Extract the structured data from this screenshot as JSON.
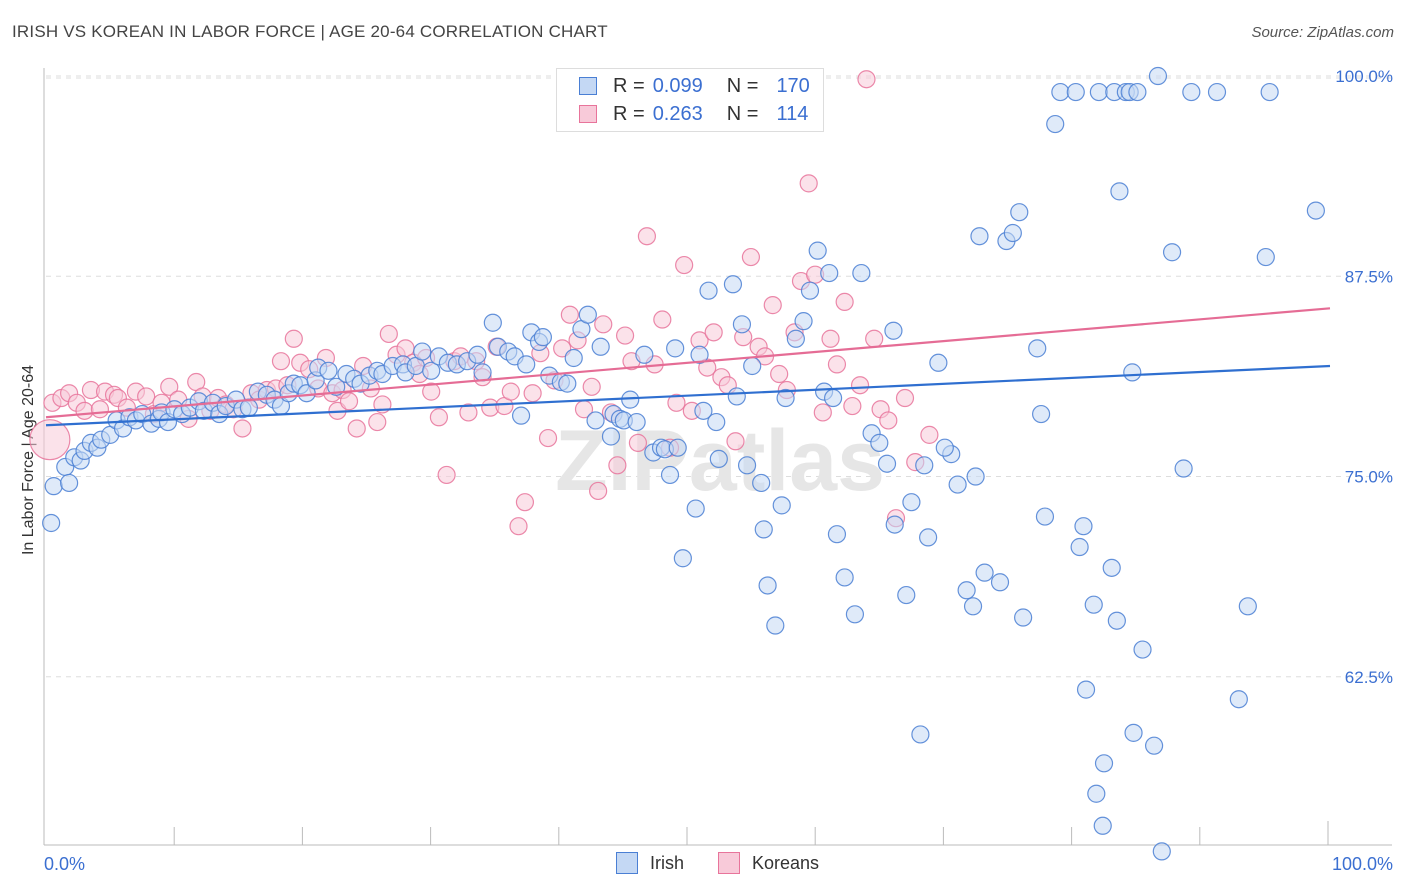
{
  "title": "IRISH VS KOREAN IN LABOR FORCE | AGE 20-64 CORRELATION CHART",
  "source": "Source: ZipAtlas.com",
  "legend": {
    "irish": {
      "r_label": "R =",
      "r_value": "0.099",
      "n_label": "N =",
      "n_value": "170"
    },
    "koreans": {
      "r_label": "R =",
      "r_value": "0.263",
      "n_label": "N =",
      "n_value": "114"
    }
  },
  "bottom_legend": {
    "irish": "Irish",
    "koreans": "Koreans"
  },
  "colors": {
    "irish": "#4a7fd4",
    "irish_fill": "#c4d8f4",
    "koreans": "#e8749b",
    "koreans_fill": "#f8cad9",
    "axis_text": "#3b6fd1"
  },
  "chart_data": {
    "type": "scatter",
    "ylabel": "In Labor Force | Age 20-64",
    "xlabel": "",
    "x_tick_labels": [
      "0.0%",
      "100.0%"
    ],
    "y_tick_labels": [
      "100.0%",
      "87.5%",
      "75.0%",
      "62.5%"
    ],
    "y_ticks": [
      100,
      87.5,
      75,
      62.5
    ],
    "xlim": [
      0,
      100
    ],
    "ylim": [
      52,
      101
    ],
    "watermark": "ZIPatlas",
    "series": [
      {
        "name": "Irish",
        "trend": {
          "x": [
            0,
            100
          ],
          "y": [
            78.2,
            81.9
          ]
        },
        "points": [
          [
            0.4,
            72.1
          ],
          [
            0.6,
            74.4
          ],
          [
            1.5,
            75.6
          ],
          [
            1.8,
            74.6
          ],
          [
            2.2,
            76.2
          ],
          [
            2.7,
            76.0
          ],
          [
            3.0,
            76.6
          ],
          [
            3.5,
            77.1
          ],
          [
            4.0,
            76.8
          ],
          [
            4.3,
            77.3
          ],
          [
            5.0,
            77.6
          ],
          [
            5.5,
            78.5
          ],
          [
            6.0,
            78.0
          ],
          [
            6.5,
            78.7
          ],
          [
            7.0,
            78.5
          ],
          [
            7.5,
            78.9
          ],
          [
            8.2,
            78.3
          ],
          [
            8.8,
            78.6
          ],
          [
            9.0,
            79.0
          ],
          [
            9.5,
            78.4
          ],
          [
            10.0,
            79.2
          ],
          [
            10.6,
            78.9
          ],
          [
            11.2,
            79.3
          ],
          [
            11.9,
            79.7
          ],
          [
            12.3,
            79.1
          ],
          [
            13.0,
            79.6
          ],
          [
            13.5,
            78.9
          ],
          [
            14.0,
            79.4
          ],
          [
            14.8,
            79.8
          ],
          [
            15.3,
            79.2
          ],
          [
            15.8,
            79.3
          ],
          [
            16.5,
            80.3
          ],
          [
            17.2,
            80.1
          ],
          [
            17.8,
            79.8
          ],
          [
            18.3,
            79.4
          ],
          [
            18.9,
            80.2
          ],
          [
            19.3,
            80.8
          ],
          [
            19.8,
            80.7
          ],
          [
            20.3,
            80.2
          ],
          [
            21.0,
            81.0
          ],
          [
            21.2,
            81.8
          ],
          [
            22.0,
            81.6
          ],
          [
            22.6,
            80.6
          ],
          [
            23.4,
            81.4
          ],
          [
            24.0,
            81.1
          ],
          [
            24.5,
            80.8
          ],
          [
            25.2,
            81.3
          ],
          [
            25.8,
            81.6
          ],
          [
            26.2,
            81.4
          ],
          [
            27.0,
            81.9
          ],
          [
            27.8,
            82.0
          ],
          [
            28.0,
            81.5
          ],
          [
            28.8,
            81.9
          ],
          [
            29.3,
            82.8
          ],
          [
            30.0,
            81.6
          ],
          [
            30.6,
            82.5
          ],
          [
            31.3,
            82.1
          ],
          [
            32.0,
            82.0
          ],
          [
            32.8,
            82.2
          ],
          [
            33.6,
            82.6
          ],
          [
            34.0,
            81.5
          ],
          [
            34.8,
            84.6
          ],
          [
            35.2,
            83.1
          ],
          [
            36.0,
            82.8
          ],
          [
            36.5,
            82.5
          ],
          [
            37.0,
            78.8
          ],
          [
            37.4,
            82.0
          ],
          [
            37.8,
            84.0
          ],
          [
            38.4,
            83.4
          ],
          [
            38.7,
            83.7
          ],
          [
            39.2,
            81.3
          ],
          [
            40.1,
            80.9
          ],
          [
            40.6,
            80.8
          ],
          [
            41.1,
            82.4
          ],
          [
            41.7,
            84.2
          ],
          [
            42.2,
            85.1
          ],
          [
            42.8,
            78.5
          ],
          [
            43.2,
            83.1
          ],
          [
            44.0,
            77.5
          ],
          [
            44.2,
            78.9
          ],
          [
            44.7,
            78.6
          ],
          [
            45.0,
            78.5
          ],
          [
            45.5,
            79.8
          ],
          [
            46.0,
            78.4
          ],
          [
            46.6,
            82.6
          ],
          [
            47.3,
            76.5
          ],
          [
            47.9,
            76.8
          ],
          [
            48.2,
            76.7
          ],
          [
            48.6,
            75.1
          ],
          [
            49.0,
            83.0
          ],
          [
            49.2,
            76.8
          ],
          [
            49.6,
            69.9
          ],
          [
            50.6,
            73.0
          ],
          [
            50.9,
            82.6
          ],
          [
            51.2,
            79.1
          ],
          [
            51.6,
            86.6
          ],
          [
            52.2,
            78.4
          ],
          [
            52.4,
            76.1
          ],
          [
            53.5,
            87.0
          ],
          [
            53.8,
            80.0
          ],
          [
            54.2,
            84.5
          ],
          [
            54.6,
            75.7
          ],
          [
            55.0,
            81.9
          ],
          [
            55.7,
            74.6
          ],
          [
            55.9,
            71.7
          ],
          [
            56.2,
            68.2
          ],
          [
            56.8,
            65.7
          ],
          [
            57.3,
            73.2
          ],
          [
            57.6,
            79.9
          ],
          [
            58.4,
            83.6
          ],
          [
            59.0,
            84.7
          ],
          [
            59.5,
            86.6
          ],
          [
            60.1,
            89.1
          ],
          [
            60.6,
            80.3
          ],
          [
            61.0,
            87.7
          ],
          [
            61.3,
            79.9
          ],
          [
            61.6,
            71.4
          ],
          [
            62.2,
            68.7
          ],
          [
            63.0,
            66.4
          ],
          [
            63.5,
            87.7
          ],
          [
            64.3,
            77.7
          ],
          [
            64.9,
            77.1
          ],
          [
            65.5,
            75.8
          ],
          [
            66.0,
            84.1
          ],
          [
            66.1,
            72.0
          ],
          [
            67.0,
            67.6
          ],
          [
            67.4,
            73.4
          ],
          [
            68.1,
            58.9
          ],
          [
            68.4,
            75.7
          ],
          [
            68.7,
            71.2
          ],
          [
            69.5,
            82.1
          ],
          [
            70.5,
            76.4
          ],
          [
            71.0,
            74.5
          ],
          [
            72.4,
            75.0
          ],
          [
            72.7,
            90.0
          ],
          [
            73.1,
            69.0
          ],
          [
            74.3,
            68.4
          ],
          [
            74.8,
            89.7
          ],
          [
            75.3,
            90.2
          ],
          [
            75.8,
            91.5
          ],
          [
            77.2,
            83.0
          ],
          [
            77.5,
            78.9
          ],
          [
            78.6,
            97.0
          ],
          [
            79.0,
            99.0
          ],
          [
            80.2,
            99.0
          ],
          [
            80.5,
            70.6
          ],
          [
            81.6,
            67.0
          ],
          [
            81.8,
            55.2
          ],
          [
            82.0,
            99.0
          ],
          [
            82.4,
            57.1
          ],
          [
            83.2,
            99.0
          ],
          [
            83.6,
            92.8
          ],
          [
            83.4,
            66.0
          ],
          [
            84.1,
            99.0
          ],
          [
            84.4,
            99.0
          ],
          [
            84.6,
            81.5
          ],
          [
            85.0,
            99.0
          ],
          [
            86.3,
            58.2
          ],
          [
            86.6,
            100.0
          ],
          [
            87.7,
            89.0
          ],
          [
            89.2,
            99.0
          ],
          [
            91.2,
            99.0
          ],
          [
            92.9,
            61.1
          ],
          [
            95.3,
            99.0
          ],
          [
            95.0,
            88.7
          ],
          [
            98.9,
            91.6
          ],
          [
            77.8,
            72.5
          ],
          [
            80.8,
            71.9
          ],
          [
            83.0,
            69.3
          ],
          [
            70.0,
            76.8
          ],
          [
            81.0,
            61.7
          ],
          [
            85.4,
            64.2
          ],
          [
            82.3,
            53.2
          ],
          [
            84.7,
            59.0
          ],
          [
            86.9,
            51.6
          ],
          [
            88.6,
            75.5
          ],
          [
            93.6,
            66.9
          ],
          [
            76.1,
            66.2
          ],
          [
            72.2,
            66.9
          ],
          [
            71.7,
            67.9
          ]
        ]
      },
      {
        "name": "Koreans",
        "trend": {
          "x": [
            0,
            100
          ],
          "y": [
            78.7,
            85.5
          ]
        },
        "points": [
          [
            0.3,
            77.3
          ],
          [
            0.5,
            79.6
          ],
          [
            1.2,
            79.9
          ],
          [
            1.8,
            80.2
          ],
          [
            2.4,
            79.6
          ],
          [
            3.0,
            79.1
          ],
          [
            3.5,
            80.4
          ],
          [
            4.2,
            79.2
          ],
          [
            4.6,
            80.3
          ],
          [
            5.3,
            80.1
          ],
          [
            5.6,
            79.9
          ],
          [
            6.3,
            79.3
          ],
          [
            7.0,
            80.3
          ],
          [
            7.8,
            80.0
          ],
          [
            8.4,
            78.9
          ],
          [
            9.0,
            79.6
          ],
          [
            9.6,
            80.6
          ],
          [
            10.3,
            79.8
          ],
          [
            11.1,
            78.6
          ],
          [
            11.7,
            80.9
          ],
          [
            12.2,
            80.0
          ],
          [
            12.8,
            79.1
          ],
          [
            13.4,
            79.9
          ],
          [
            14.0,
            79.5
          ],
          [
            14.6,
            79.2
          ],
          [
            15.3,
            78.0
          ],
          [
            16.0,
            80.2
          ],
          [
            16.6,
            79.8
          ],
          [
            17.2,
            80.4
          ],
          [
            17.9,
            80.5
          ],
          [
            18.3,
            82.2
          ],
          [
            18.8,
            80.7
          ],
          [
            19.3,
            83.6
          ],
          [
            19.8,
            82.1
          ],
          [
            20.5,
            81.7
          ],
          [
            21.2,
            80.5
          ],
          [
            21.8,
            82.4
          ],
          [
            22.3,
            80.2
          ],
          [
            22.7,
            79.1
          ],
          [
            23.1,
            80.4
          ],
          [
            23.6,
            79.7
          ],
          [
            24.2,
            78.0
          ],
          [
            24.7,
            81.9
          ],
          [
            25.3,
            80.5
          ],
          [
            25.8,
            78.4
          ],
          [
            26.2,
            79.5
          ],
          [
            26.7,
            83.9
          ],
          [
            27.3,
            82.6
          ],
          [
            28.0,
            83.0
          ],
          [
            28.6,
            82.1
          ],
          [
            29.1,
            81.4
          ],
          [
            29.6,
            82.4
          ],
          [
            30.0,
            80.3
          ],
          [
            30.6,
            78.7
          ],
          [
            31.2,
            75.1
          ],
          [
            31.8,
            82.2
          ],
          [
            32.3,
            82.5
          ],
          [
            32.9,
            79.0
          ],
          [
            33.5,
            82.2
          ],
          [
            34.0,
            81.2
          ],
          [
            34.6,
            79.3
          ],
          [
            35.1,
            83.1
          ],
          [
            35.7,
            79.4
          ],
          [
            36.2,
            80.3
          ],
          [
            36.8,
            71.9
          ],
          [
            37.3,
            73.4
          ],
          [
            37.9,
            80.2
          ],
          [
            38.5,
            82.7
          ],
          [
            39.1,
            77.4
          ],
          [
            39.6,
            81.0
          ],
          [
            40.2,
            83.0
          ],
          [
            40.8,
            85.1
          ],
          [
            41.4,
            83.5
          ],
          [
            41.9,
            79.2
          ],
          [
            42.5,
            80.6
          ],
          [
            43.0,
            74.1
          ],
          [
            43.4,
            84.5
          ],
          [
            44.0,
            79.0
          ],
          [
            44.5,
            75.7
          ],
          [
            45.1,
            83.8
          ],
          [
            45.6,
            82.2
          ],
          [
            46.1,
            77.1
          ],
          [
            46.8,
            90.0
          ],
          [
            47.4,
            82.0
          ],
          [
            48.0,
            84.8
          ],
          [
            48.6,
            76.8
          ],
          [
            49.1,
            79.6
          ],
          [
            49.7,
            88.2
          ],
          [
            50.3,
            79.1
          ],
          [
            50.9,
            83.5
          ],
          [
            51.5,
            81.8
          ],
          [
            52.0,
            84.0
          ],
          [
            52.6,
            81.2
          ],
          [
            53.1,
            80.7
          ],
          [
            53.7,
            77.2
          ],
          [
            54.3,
            83.7
          ],
          [
            54.9,
            88.7
          ],
          [
            55.5,
            83.1
          ],
          [
            56.0,
            82.5
          ],
          [
            56.6,
            85.7
          ],
          [
            57.1,
            81.4
          ],
          [
            57.7,
            80.4
          ],
          [
            58.3,
            84.0
          ],
          [
            58.8,
            87.2
          ],
          [
            59.4,
            93.3
          ],
          [
            59.9,
            87.6
          ],
          [
            60.5,
            79.0
          ],
          [
            61.1,
            83.6
          ],
          [
            61.6,
            82.0
          ],
          [
            62.2,
            85.9
          ],
          [
            62.8,
            79.4
          ],
          [
            63.4,
            80.7
          ],
          [
            63.9,
            99.8
          ],
          [
            64.5,
            83.6
          ],
          [
            65.0,
            79.2
          ],
          [
            65.6,
            78.5
          ],
          [
            66.2,
            72.4
          ],
          [
            66.9,
            79.9
          ],
          [
            67.7,
            75.9
          ],
          [
            68.8,
            77.6
          ]
        ]
      }
    ]
  }
}
